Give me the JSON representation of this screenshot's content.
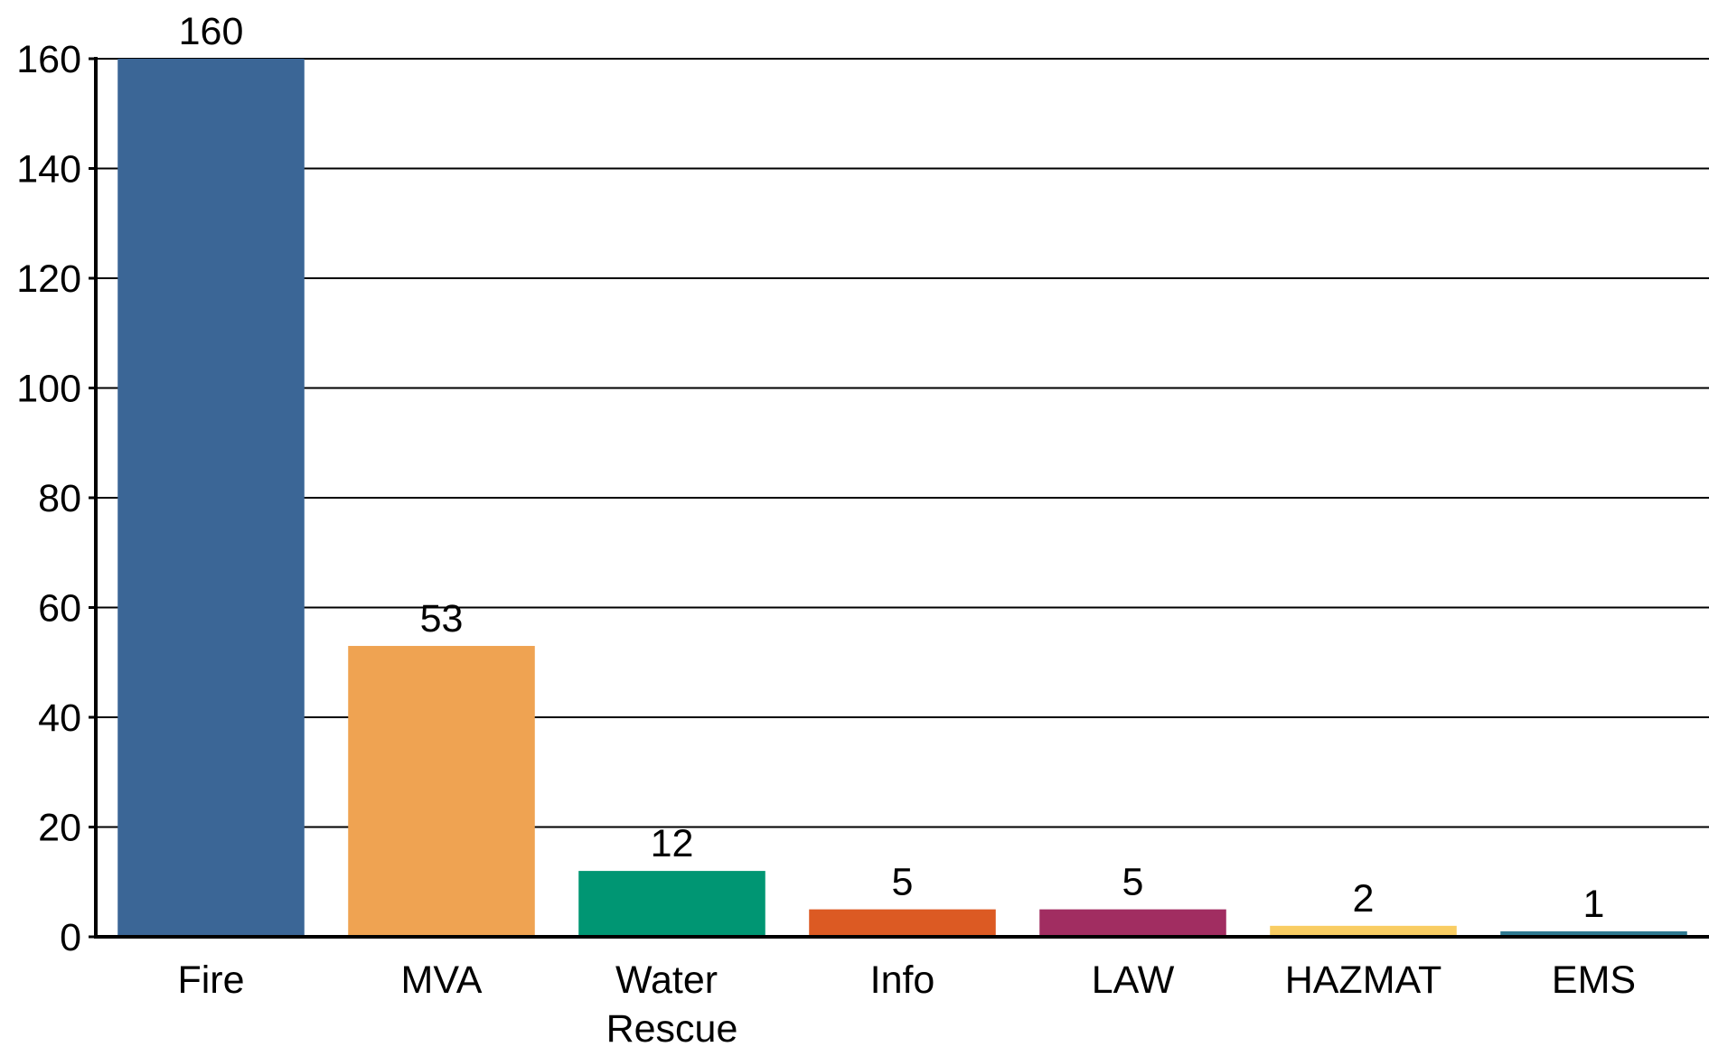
{
  "chart_data": {
    "type": "bar",
    "categories": [
      "Fire",
      "MVA",
      "Water Rescue",
      "Info",
      "LAW",
      "HAZMAT",
      "EMS"
    ],
    "values": [
      160,
      53,
      12,
      5,
      5,
      2,
      1
    ],
    "colors": [
      "#3b6696",
      "#efa352",
      "#009673",
      "#dc5a23",
      "#a12d61",
      "#f9cd63",
      "#2f7a92"
    ],
    "ylim": [
      0,
      160
    ],
    "yticks": [
      0,
      20,
      40,
      60,
      80,
      100,
      120,
      140,
      160
    ],
    "grid": true
  }
}
